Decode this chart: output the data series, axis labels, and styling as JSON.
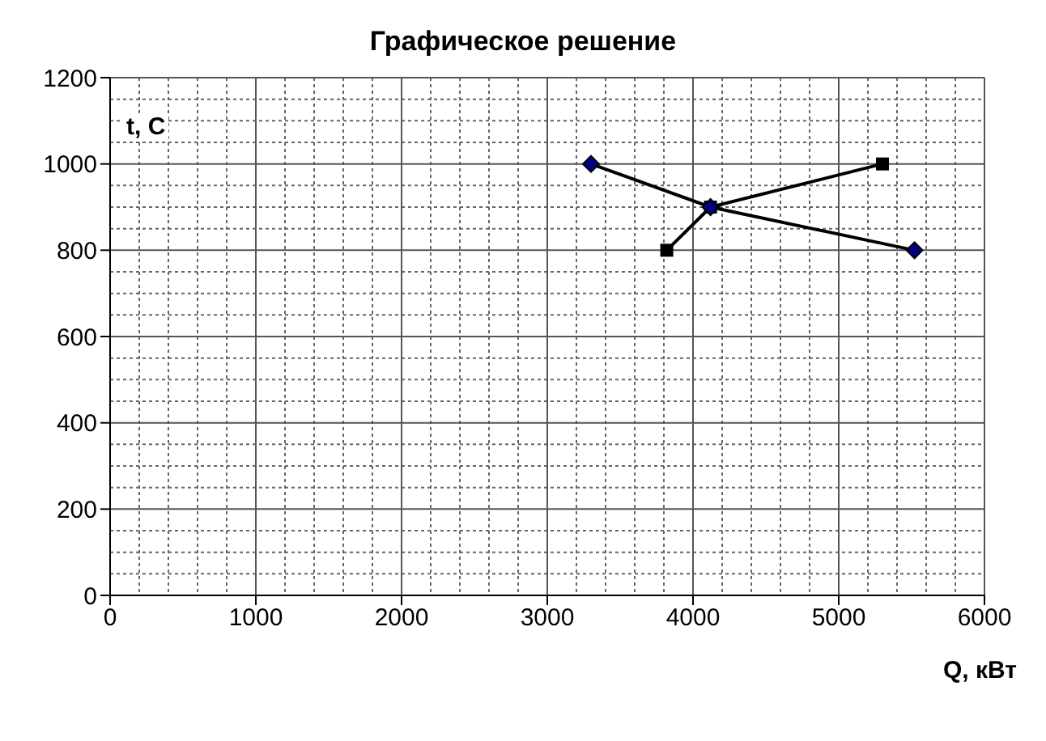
{
  "chart_data": {
    "type": "line",
    "title": "Графическое решение",
    "xlabel": "Q, кВт",
    "ylabel": "t, C",
    "series": [
      {
        "x": [
          3300,
          4120,
          5520
        ],
        "values": [
          1000,
          900,
          800
        ],
        "color": "#000000",
        "marker": "diamond"
      },
      {
        "x": [
          3820,
          4120,
          5300
        ],
        "values": [
          800,
          900,
          1000
        ],
        "color": "#000000",
        "marker": "square"
      }
    ],
    "xlim": [
      0,
      6000
    ],
    "xticks": [
      0,
      1000,
      2000,
      3000,
      4000,
      5000,
      6000
    ],
    "ylim": [
      0,
      1200
    ],
    "yticks": [
      0,
      200,
      400,
      600,
      800,
      1000,
      1200
    ],
    "grid": true,
    "line_style": "solid"
  }
}
